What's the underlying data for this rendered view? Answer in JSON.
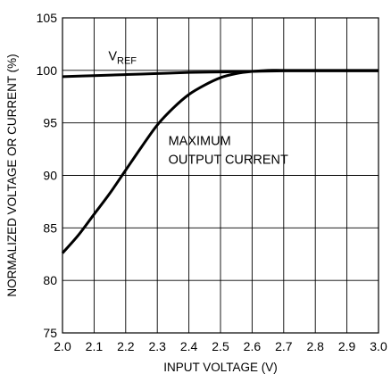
{
  "chart_data": {
    "type": "line",
    "xlabel": "INPUT VOLTAGE (V)",
    "ylabel": "NORMALIZED VOLTAGE OR CURRENT (%)",
    "xlim": [
      2.0,
      3.0
    ],
    "ylim": [
      75,
      105
    ],
    "x_ticks": [
      "2.0",
      "2.1",
      "2.2",
      "2.3",
      "2.4",
      "2.5",
      "2.6",
      "2.7",
      "2.8",
      "2.9",
      "3.0"
    ],
    "y_ticks": [
      "75",
      "80",
      "85",
      "90",
      "95",
      "100",
      "105"
    ],
    "grid": true,
    "legend": "none",
    "series": [
      {
        "label_main": "V",
        "label_sub": "REF",
        "x": [
          2.0,
          2.1,
          2.2,
          2.3,
          2.4,
          2.5,
          2.6,
          2.7,
          2.8,
          2.9,
          3.0
        ],
        "y": [
          99.4,
          99.5,
          99.6,
          99.7,
          99.8,
          99.85,
          99.9,
          99.95,
          99.95,
          99.95,
          99.95
        ]
      },
      {
        "label_lines": [
          "MAXIMUM",
          "OUTPUT CURRENT"
        ],
        "x": [
          2.0,
          2.05,
          2.1,
          2.15,
          2.2,
          2.25,
          2.3,
          2.35,
          2.4,
          2.45,
          2.5,
          2.55,
          2.6,
          2.65,
          2.7,
          2.8,
          2.9,
          3.0
        ],
        "y": [
          82.6,
          84.3,
          86.3,
          88.3,
          90.5,
          92.7,
          94.8,
          96.4,
          97.7,
          98.6,
          99.3,
          99.7,
          99.9,
          100.0,
          100.0,
          100.0,
          100.0,
          100.0
        ]
      }
    ]
  }
}
